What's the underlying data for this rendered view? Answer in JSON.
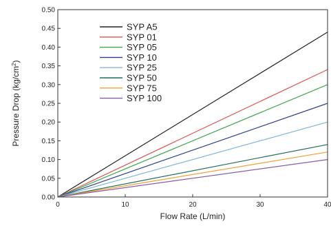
{
  "chart_data": {
    "type": "line",
    "title": "",
    "xlabel": "Flow Rate (L/min)",
    "ylabel": "Pressure Drop (kg/cm",
    "ylabel_sup": "2",
    "ylabel_close": ")",
    "xlim": [
      0,
      40
    ],
    "ylim": [
      0,
      0.5
    ],
    "x_ticks": [
      0,
      10,
      20,
      30,
      40
    ],
    "x_tick_labels": [
      "0",
      "10",
      "20",
      "30",
      "40"
    ],
    "y_ticks": [
      0,
      0.05,
      0.1,
      0.15,
      0.2,
      0.25,
      0.3,
      0.35,
      0.4,
      0.45,
      0.5
    ],
    "y_tick_labels": [
      "0.00",
      "0.05",
      "0.10",
      "0.15",
      "0.20",
      "0.25",
      "0.30",
      "0.35",
      "0.40",
      "0.45",
      "0.50"
    ],
    "grid": false,
    "legend_position": "top-left",
    "series": [
      {
        "name": "SYP A5",
        "color": "#222222",
        "x": [
          0,
          40
        ],
        "y": [
          0,
          0.44
        ]
      },
      {
        "name": "SYP 01",
        "color": "#e05050",
        "x": [
          0,
          40
        ],
        "y": [
          0,
          0.34
        ]
      },
      {
        "name": "SYP 05",
        "color": "#3aa648",
        "x": [
          0,
          40
        ],
        "y": [
          0,
          0.3
        ]
      },
      {
        "name": "SYP 10",
        "color": "#2b3f8c",
        "x": [
          0,
          40
        ],
        "y": [
          0,
          0.25
        ]
      },
      {
        "name": "SYP 25",
        "color": "#7fb7d8",
        "x": [
          0,
          40
        ],
        "y": [
          0,
          0.2
        ]
      },
      {
        "name": "SYP 50",
        "color": "#1e6e5a",
        "x": [
          0,
          40
        ],
        "y": [
          0,
          0.14
        ]
      },
      {
        "name": "SYP 75",
        "color": "#f0a030",
        "x": [
          0,
          40
        ],
        "y": [
          0,
          0.12
        ]
      },
      {
        "name": "SYP 100",
        "color": "#8a5aa8",
        "x": [
          0,
          40
        ],
        "y": [
          0,
          0.1
        ]
      }
    ]
  }
}
